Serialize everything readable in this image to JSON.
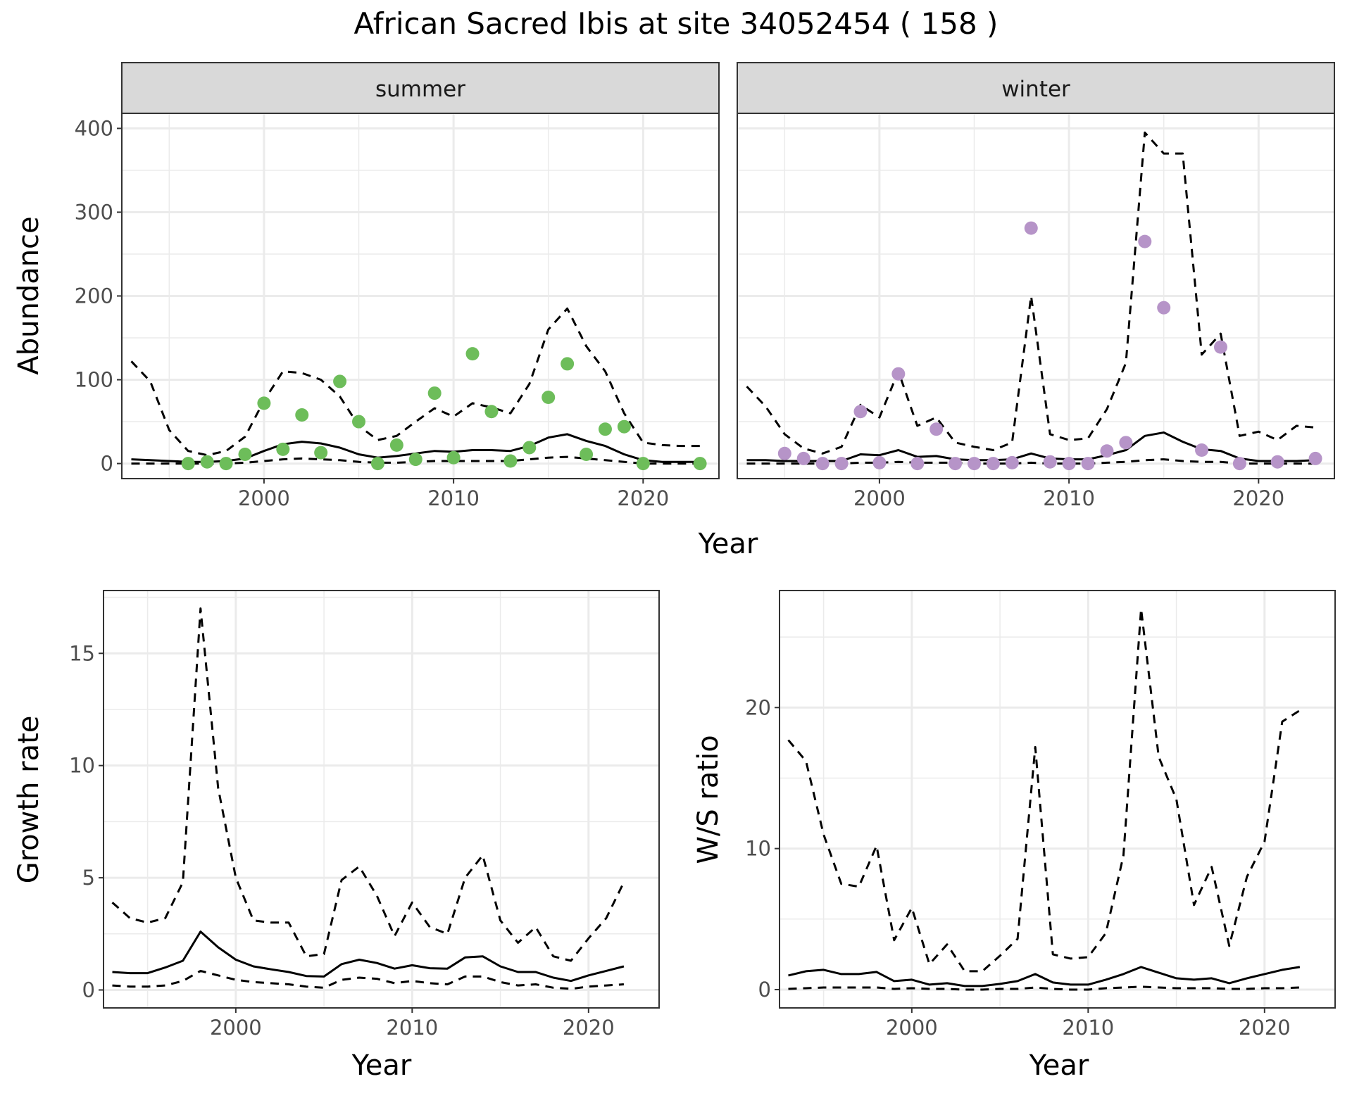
{
  "title": "African Sacred Ibis at site 34052454 ( 158 )",
  "colors": {
    "summer_points": "#6dbd5a",
    "winter_points": "#b694c8",
    "lines": "#000000",
    "strip_bg": "#d9d9d9",
    "grid": "#ebebeb"
  },
  "chart_data": [
    {
      "id": "abundance",
      "type": "scatter",
      "facets": [
        "summer",
        "winter"
      ],
      "xlabel": "Year",
      "ylabel": "Abundance",
      "xlim": [
        1992.5,
        2024
      ],
      "ylim": [
        -18,
        418
      ],
      "xticks": [
        2000,
        2010,
        2020
      ],
      "yticks": [
        0,
        100,
        200,
        300,
        400
      ],
      "grid": true,
      "panels": [
        {
          "facet": "summer",
          "points": {
            "x": [
              1996,
              1997,
              1998,
              1999,
              2000,
              2001,
              2002,
              2003,
              2004,
              2005,
              2006,
              2007,
              2008,
              2009,
              2010,
              2011,
              2012,
              2013,
              2014,
              2015,
              2016,
              2017,
              2018,
              2019,
              2020,
              2023
            ],
            "y": [
              0,
              2,
              0,
              11,
              72,
              17,
              58,
              13,
              98,
              50,
              0,
              22,
              5,
              84,
              7,
              131,
              62,
              3,
              19,
              79,
              119,
              11,
              41,
              44,
              0,
              0
            ]
          },
          "mean": {
            "x": [
              1993,
              1994,
              1995,
              1996,
              1997,
              1998,
              1999,
              2000,
              2001,
              2002,
              2003,
              2004,
              2005,
              2006,
              2007,
              2008,
              2009,
              2010,
              2011,
              2012,
              2013,
              2014,
              2015,
              2016,
              2017,
              2018,
              2019,
              2020,
              2021,
              2022,
              2023
            ],
            "y": [
              5,
              4,
              3,
              2,
              2,
              3,
              6,
              15,
              23,
              26,
              24,
              19,
              11,
              7,
              9,
              12,
              15,
              14,
              16,
              16,
              15,
              21,
              31,
              35,
              27,
              21,
              11,
              4,
              2,
              2,
              2
            ]
          },
          "upper": {
            "x": [
              1993,
              1994,
              1995,
              1996,
              1997,
              1998,
              1999,
              2000,
              2001,
              2002,
              2003,
              2004,
              2005,
              2006,
              2007,
              2008,
              2009,
              2010,
              2011,
              2012,
              2013,
              2014,
              2015,
              2016,
              2017,
              2018,
              2019,
              2020,
              2021,
              2022,
              2023
            ],
            "y": [
              122,
              98,
              40,
              15,
              10,
              15,
              32,
              75,
              110,
              108,
              100,
              80,
              45,
              28,
              33,
              50,
              66,
              56,
              72,
              67,
              60,
              95,
              160,
              185,
              140,
              110,
              60,
              25,
              22,
              21,
              21
            ]
          },
          "lower": {
            "x": [
              1993,
              1994,
              1995,
              1996,
              1997,
              1998,
              1999,
              2000,
              2001,
              2002,
              2003,
              2004,
              2005,
              2006,
              2007,
              2008,
              2009,
              2010,
              2011,
              2012,
              2013,
              2014,
              2015,
              2016,
              2017,
              2018,
              2019,
              2020,
              2021,
              2022,
              2023
            ],
            "y": [
              0,
              0,
              0,
              0,
              0,
              0,
              1,
              3,
              5,
              6,
              5,
              4,
              2,
              1,
              1,
              2,
              3,
              3,
              3,
              3,
              3,
              5,
              7,
              8,
              6,
              4,
              2,
              0,
              0,
              0,
              0
            ]
          }
        },
        {
          "facet": "winter",
          "points": {
            "x": [
              1995,
              1996,
              1997,
              1998,
              1999,
              2000,
              2001,
              2002,
              2003,
              2004,
              2005,
              2006,
              2007,
              2008,
              2009,
              2010,
              2011,
              2012,
              2013,
              2014,
              2015,
              2017,
              2018,
              2019,
              2021,
              2023
            ],
            "y": [
              12,
              6,
              0,
              0,
              62,
              1,
              107,
              0,
              41,
              0,
              0,
              0,
              1,
              281,
              2,
              0,
              0,
              15,
              25,
              265,
              186,
              16,
              139,
              0,
              2,
              6
            ]
          },
          "mean": {
            "x": [
              1993,
              1994,
              1995,
              1996,
              1997,
              1998,
              1999,
              2000,
              2001,
              2002,
              2003,
              2004,
              2005,
              2006,
              2007,
              2008,
              2009,
              2010,
              2011,
              2012,
              2013,
              2014,
              2015,
              2016,
              2017,
              2018,
              2019,
              2020,
              2021,
              2022,
              2023
            ],
            "y": [
              4,
              4,
              3,
              3,
              3,
              3,
              11,
              10,
              16,
              8,
              9,
              5,
              4,
              4,
              5,
              12,
              6,
              5,
              5,
              10,
              16,
              33,
              37,
              26,
              17,
              15,
              6,
              3,
              3,
              3,
              4
            ]
          },
          "upper": {
            "x": [
              1993,
              1994,
              1995,
              1996,
              1997,
              1998,
              1999,
              2000,
              2001,
              2002,
              2003,
              2004,
              2005,
              2006,
              2007,
              2008,
              2009,
              2010,
              2011,
              2012,
              2013,
              2014,
              2015,
              2016,
              2017,
              2018,
              2019,
              2020,
              2021,
              2022,
              2023
            ],
            "y": [
              92,
              68,
              35,
              18,
              12,
              20,
              70,
              55,
              110,
              45,
              55,
              25,
              20,
              16,
              25,
              200,
              35,
              28,
              30,
              65,
              120,
              395,
              370,
              370,
              130,
              155,
              33,
              38,
              28,
              45,
              43
            ]
          },
          "lower": {
            "x": [
              1993,
              1994,
              1995,
              1996,
              1997,
              1998,
              1999,
              2000,
              2001,
              2002,
              2003,
              2004,
              2005,
              2006,
              2007,
              2008,
              2009,
              2010,
              2011,
              2012,
              2013,
              2014,
              2015,
              2016,
              2017,
              2018,
              2019,
              2020,
              2021,
              2022,
              2023
            ],
            "y": [
              0,
              0,
              0,
              0,
              0,
              0,
              1,
              1,
              2,
              1,
              1,
              1,
              0,
              0,
              0,
              1,
              0,
              0,
              0,
              1,
              2,
              4,
              5,
              3,
              2,
              2,
              0,
              0,
              0,
              0,
              0
            ]
          }
        }
      ]
    },
    {
      "id": "growth-rate",
      "type": "line",
      "xlabel": "Year",
      "ylabel": "Growth rate",
      "xlim": [
        1992.5,
        2024
      ],
      "ylim": [
        -0.8,
        17.8
      ],
      "xticks": [
        2000,
        2010,
        2020
      ],
      "yticks": [
        0,
        5,
        10,
        15
      ],
      "grid": true,
      "series": [
        {
          "name": "mean",
          "style": "solid",
          "x": [
            1993,
            1994,
            1995,
            1996,
            1997,
            1998,
            1999,
            2000,
            2001,
            2002,
            2003,
            2004,
            2005,
            2006,
            2007,
            2008,
            2009,
            2010,
            2011,
            2012,
            2013,
            2014,
            2015,
            2016,
            2017,
            2018,
            2019,
            2020,
            2021,
            2022
          ],
          "y": [
            0.8,
            0.75,
            0.75,
            1.0,
            1.3,
            2.6,
            1.9,
            1.35,
            1.05,
            0.92,
            0.8,
            0.62,
            0.6,
            1.15,
            1.35,
            1.2,
            0.95,
            1.1,
            0.97,
            0.95,
            1.45,
            1.5,
            1.05,
            0.8,
            0.8,
            0.55,
            0.4,
            0.65,
            0.85,
            1.05
          ]
        },
        {
          "name": "upper",
          "style": "dashed",
          "x": [
            1993,
            1994,
            1995,
            1996,
            1997,
            1998,
            1999,
            2000,
            2001,
            2002,
            2003,
            2004,
            2005,
            2006,
            2007,
            2008,
            2009,
            2010,
            2011,
            2012,
            2013,
            2014,
            2015,
            2016,
            2017,
            2018,
            2019,
            2020,
            2021,
            2022
          ],
          "y": [
            3.9,
            3.2,
            3.0,
            3.2,
            4.8,
            17.0,
            9.0,
            5.0,
            3.1,
            3.0,
            3.0,
            1.5,
            1.6,
            4.9,
            5.5,
            4.2,
            2.4,
            3.9,
            2.8,
            2.5,
            5.0,
            6.0,
            3.1,
            2.1,
            2.8,
            1.5,
            1.3,
            2.3,
            3.2,
            4.8
          ]
        },
        {
          "name": "lower",
          "style": "dashed",
          "x": [
            1993,
            1994,
            1995,
            1996,
            1997,
            1998,
            1999,
            2000,
            2001,
            2002,
            2003,
            2004,
            2005,
            2006,
            2007,
            2008,
            2009,
            2010,
            2011,
            2012,
            2013,
            2014,
            2015,
            2016,
            2017,
            2018,
            2019,
            2020,
            2021,
            2022
          ],
          "y": [
            0.2,
            0.15,
            0.15,
            0.2,
            0.4,
            0.85,
            0.65,
            0.45,
            0.35,
            0.3,
            0.25,
            0.15,
            0.1,
            0.45,
            0.55,
            0.5,
            0.3,
            0.4,
            0.3,
            0.25,
            0.6,
            0.6,
            0.35,
            0.2,
            0.25,
            0.1,
            0.05,
            0.15,
            0.2,
            0.25
          ]
        }
      ]
    },
    {
      "id": "ws-ratio",
      "type": "line",
      "xlabel": "Year",
      "ylabel": "W/S ratio",
      "xlim": [
        1992.5,
        2024
      ],
      "ylim": [
        -1.3,
        28.3
      ],
      "xticks": [
        2000,
        2010,
        2020
      ],
      "yticks": [
        0,
        10,
        20
      ],
      "grid": true,
      "series": [
        {
          "name": "mean",
          "style": "solid",
          "x": [
            1993,
            1994,
            1995,
            1996,
            1997,
            1998,
            1999,
            2000,
            2001,
            2002,
            2003,
            2004,
            2005,
            2006,
            2007,
            2008,
            2009,
            2010,
            2011,
            2012,
            2013,
            2014,
            2015,
            2016,
            2017,
            2018,
            2019,
            2020,
            2021,
            2022
          ],
          "y": [
            1.0,
            1.3,
            1.4,
            1.1,
            1.1,
            1.25,
            0.6,
            0.7,
            0.35,
            0.45,
            0.25,
            0.25,
            0.4,
            0.6,
            1.1,
            0.5,
            0.35,
            0.35,
            0.7,
            1.1,
            1.6,
            1.2,
            0.8,
            0.7,
            0.8,
            0.45,
            0.8,
            1.1,
            1.4,
            1.6
          ]
        },
        {
          "name": "upper",
          "style": "dashed",
          "x": [
            1993,
            1994,
            1995,
            1996,
            1997,
            1998,
            1999,
            2000,
            2001,
            2002,
            2003,
            2004,
            2005,
            2006,
            2007,
            2008,
            2009,
            2010,
            2011,
            2012,
            2013,
            2014,
            2015,
            2016,
            2017,
            2018,
            2019,
            2020,
            2021,
            2022
          ],
          "y": [
            17.7,
            16.2,
            11.0,
            7.5,
            7.3,
            10.2,
            3.5,
            5.8,
            1.8,
            3.2,
            1.3,
            1.3,
            2.4,
            3.6,
            17.2,
            2.5,
            2.2,
            2.3,
            4.0,
            9.5,
            27.0,
            16.5,
            13.5,
            6.0,
            8.7,
            3.1,
            8.0,
            10.5,
            19.0,
            19.8
          ]
        },
        {
          "name": "lower",
          "style": "dashed",
          "x": [
            1993,
            1994,
            1995,
            1996,
            1997,
            1998,
            1999,
            2000,
            2001,
            2002,
            2003,
            2004,
            2005,
            2006,
            2007,
            2008,
            2009,
            2010,
            2011,
            2012,
            2013,
            2014,
            2015,
            2016,
            2017,
            2018,
            2019,
            2020,
            2021,
            2022
          ],
          "y": [
            0.05,
            0.1,
            0.15,
            0.15,
            0.15,
            0.15,
            0.05,
            0.1,
            0.05,
            0.05,
            0.0,
            0.0,
            0.05,
            0.05,
            0.15,
            0.05,
            0.0,
            0.0,
            0.1,
            0.15,
            0.2,
            0.15,
            0.1,
            0.1,
            0.1,
            0.05,
            0.05,
            0.1,
            0.1,
            0.15
          ]
        }
      ]
    }
  ]
}
